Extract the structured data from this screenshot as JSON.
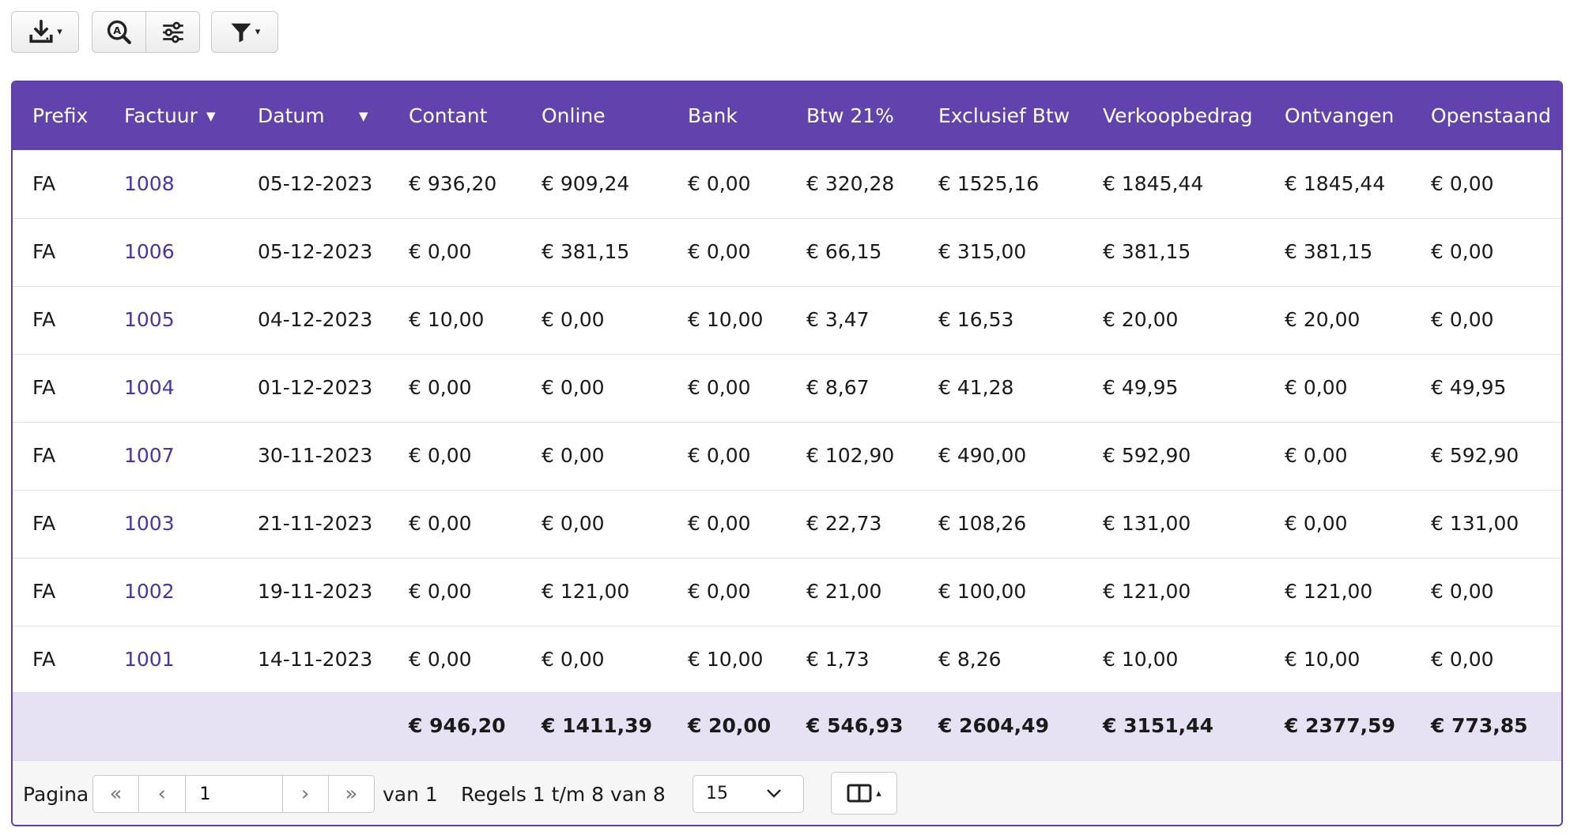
{
  "toolbar": {
    "export_icon": "download-icon",
    "search_icon": "zoom-search-icon",
    "settings_icon": "sliders-icon",
    "filter_icon": "filter-icon"
  },
  "table": {
    "header_color": "#6243ad",
    "columns": [
      "Prefix",
      "Factuur",
      "Datum",
      "Contant",
      "Online",
      "Bank",
      "Btw 21%",
      "Exclusief Btw",
      "Verkoopbedrag",
      "Ontvangen",
      "Openstaand"
    ],
    "rows": [
      [
        "FA",
        "1008",
        "05-12-2023",
        "€ 936,20",
        "€ 909,24",
        "€ 0,00",
        "€ 320,28",
        "€ 1525,16",
        "€ 1845,44",
        "€ 1845,44",
        "€ 0,00"
      ],
      [
        "FA",
        "1006",
        "05-12-2023",
        "€ 0,00",
        "€ 381,15",
        "€ 0,00",
        "€ 66,15",
        "€ 315,00",
        "€ 381,15",
        "€ 381,15",
        "€ 0,00"
      ],
      [
        "FA",
        "1005",
        "04-12-2023",
        "€ 10,00",
        "€ 0,00",
        "€ 10,00",
        "€ 3,47",
        "€ 16,53",
        "€ 20,00",
        "€ 20,00",
        "€ 0,00"
      ],
      [
        "FA",
        "1004",
        "01-12-2023",
        "€ 0,00",
        "€ 0,00",
        "€ 0,00",
        "€ 8,67",
        "€ 41,28",
        "€ 49,95",
        "€ 0,00",
        "€ 49,95"
      ],
      [
        "FA",
        "1007",
        "30-11-2023",
        "€ 0,00",
        "€ 0,00",
        "€ 0,00",
        "€ 102,90",
        "€ 490,00",
        "€ 592,90",
        "€ 0,00",
        "€ 592,90"
      ],
      [
        "FA",
        "1003",
        "21-11-2023",
        "€ 0,00",
        "€ 0,00",
        "€ 0,00",
        "€ 22,73",
        "€ 108,26",
        "€ 131,00",
        "€ 0,00",
        "€ 131,00"
      ],
      [
        "FA",
        "1002",
        "19-11-2023",
        "€ 0,00",
        "€ 121,00",
        "€ 0,00",
        "€ 21,00",
        "€ 100,00",
        "€ 121,00",
        "€ 121,00",
        "€ 0,00"
      ],
      [
        "FA",
        "1001",
        "14-11-2023",
        "€ 0,00",
        "€ 0,00",
        "€ 10,00",
        "€ 1,73",
        "€ 8,26",
        "€ 10,00",
        "€ 10,00",
        "€ 0,00"
      ]
    ],
    "totals": [
      "",
      "",
      "",
      "€ 946,20",
      "€ 1411,39",
      "€ 20,00",
      "€ 546,93",
      "€ 2604,49",
      "€ 3151,44",
      "€ 2377,59",
      "€ 773,85"
    ]
  },
  "pager": {
    "page_label": "Pagina",
    "page_value": "1",
    "of_label": "van 1",
    "records_label": "Regels 1 t/m 8 van 8",
    "page_size": "15"
  }
}
